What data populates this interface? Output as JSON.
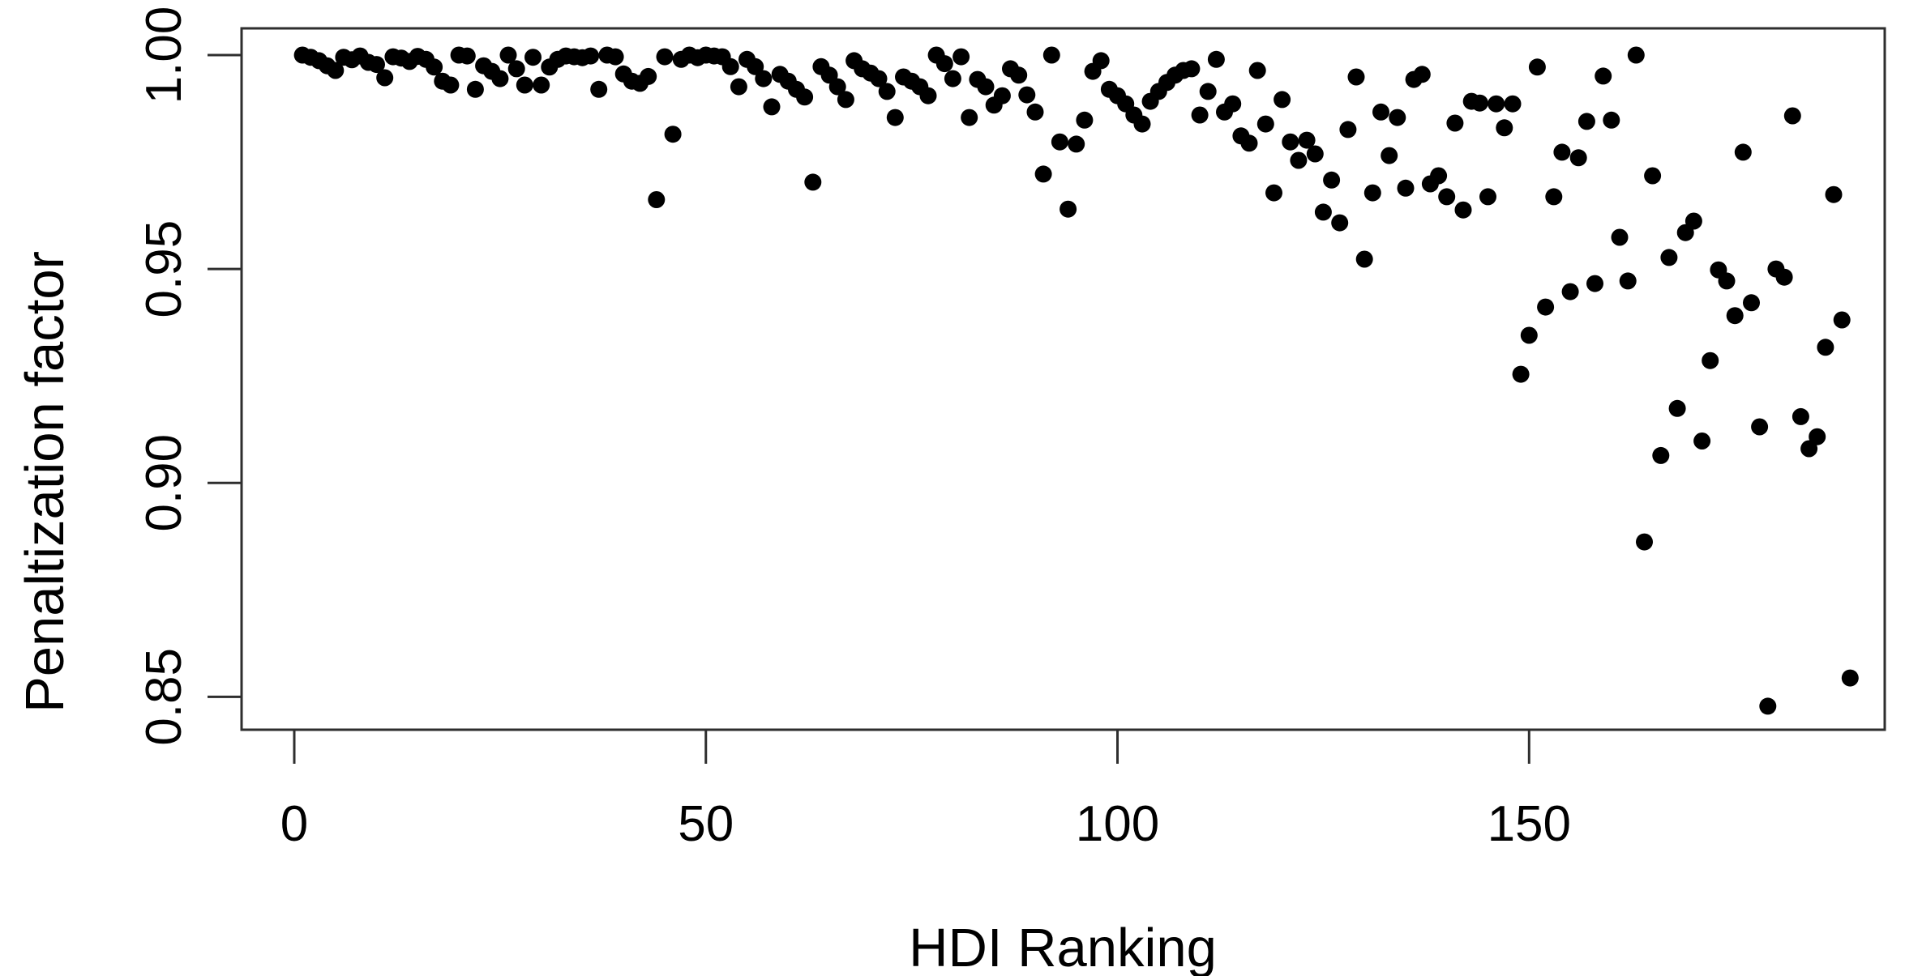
{
  "page": {
    "background": "#ffffff"
  },
  "chart_data": {
    "type": "scatter",
    "title": "",
    "xlabel": "HDI Ranking",
    "ylabel": "Penaltization factor",
    "x_ticks": [
      0,
      50,
      100,
      150
    ],
    "y_ticks": [
      0.85,
      0.9,
      0.95,
      1.0
    ],
    "y_tick_labels": [
      "0.85",
      "0.90",
      "0.95",
      "1.00"
    ],
    "xlim": [
      -6.4,
      193.2
    ],
    "ylim": [
      0.8423,
      1.00625
    ],
    "grid": false,
    "legend": "none",
    "point_color": "#000000",
    "axis_color": "#2e2e2e",
    "points": [
      [
        1,
        1.0
      ],
      [
        2,
        0.9995
      ],
      [
        3,
        0.9987
      ],
      [
        4,
        0.9975
      ],
      [
        5,
        0.9964
      ],
      [
        6,
        0.9995
      ],
      [
        7,
        0.9989
      ],
      [
        8,
        0.9998
      ],
      [
        9,
        0.9983
      ],
      [
        10,
        0.9978
      ],
      [
        11,
        0.9947
      ],
      [
        12,
        0.9996
      ],
      [
        13,
        0.9993
      ],
      [
        14,
        0.9985
      ],
      [
        15,
        0.9997
      ],
      [
        16,
        0.999
      ],
      [
        17,
        0.9972
      ],
      [
        18,
        0.9939
      ],
      [
        19,
        0.993
      ],
      [
        20,
        1.0
      ],
      [
        21,
        0.9998
      ],
      [
        22,
        0.992
      ],
      [
        23,
        0.9975
      ],
      [
        24,
        0.9962
      ],
      [
        25,
        0.9945
      ],
      [
        26,
        1.0
      ],
      [
        27,
        0.9968
      ],
      [
        28,
        0.993
      ],
      [
        29,
        0.9995
      ],
      [
        30,
        0.993
      ],
      [
        31,
        0.9972
      ],
      [
        32,
        0.999
      ],
      [
        33,
        0.9998
      ],
      [
        34,
        0.9996
      ],
      [
        35,
        0.9994
      ],
      [
        36,
        0.9998
      ],
      [
        37,
        0.992
      ],
      [
        38,
        1.0
      ],
      [
        39,
        0.9996
      ],
      [
        40,
        0.9956
      ],
      [
        41,
        0.9939
      ],
      [
        42,
        0.9934
      ],
      [
        43,
        0.995
      ],
      [
        44,
        0.9662
      ],
      [
        45,
        0.9996
      ],
      [
        46,
        0.9815
      ],
      [
        47,
        0.999
      ],
      [
        48,
        1.0
      ],
      [
        49,
        0.9994
      ],
      [
        50,
        1.0
      ],
      [
        51,
        0.9998
      ],
      [
        52,
        0.9996
      ],
      [
        53,
        0.9973
      ],
      [
        54,
        0.9926
      ],
      [
        55,
        0.999
      ],
      [
        56,
        0.9973
      ],
      [
        57,
        0.9945
      ],
      [
        58,
        0.9879
      ],
      [
        59,
        0.9955
      ],
      [
        60,
        0.9939
      ],
      [
        61,
        0.992
      ],
      [
        62,
        0.9902
      ],
      [
        63,
        0.9703
      ],
      [
        64,
        0.9973
      ],
      [
        65,
        0.9953
      ],
      [
        66,
        0.9926
      ],
      [
        67,
        0.9896
      ],
      [
        68,
        0.9987
      ],
      [
        69,
        0.9968
      ],
      [
        70,
        0.9958
      ],
      [
        71,
        0.9945
      ],
      [
        72,
        0.9915
      ],
      [
        73,
        0.9854
      ],
      [
        74,
        0.9949
      ],
      [
        75,
        0.9939
      ],
      [
        76,
        0.9926
      ],
      [
        77,
        0.9905
      ],
      [
        78,
        1.0
      ],
      [
        79,
        0.998
      ],
      [
        80,
        0.9945
      ],
      [
        81,
        0.9996
      ],
      [
        82,
        0.9854
      ],
      [
        83,
        0.9943
      ],
      [
        84,
        0.9926
      ],
      [
        85,
        0.9883
      ],
      [
        86,
        0.9905
      ],
      [
        87,
        0.9968
      ],
      [
        88,
        0.9953
      ],
      [
        89,
        0.9907
      ],
      [
        90,
        0.9867
      ],
      [
        91,
        0.9722
      ],
      [
        92,
        1.0
      ],
      [
        93,
        0.9797
      ],
      [
        94,
        0.964
      ],
      [
        95,
        0.9792
      ],
      [
        96,
        0.9848
      ],
      [
        97,
        0.9962
      ],
      [
        98,
        0.9987
      ],
      [
        99,
        0.992
      ],
      [
        100,
        0.9905
      ],
      [
        101,
        0.9886
      ],
      [
        102,
        0.986
      ],
      [
        103,
        0.9839
      ],
      [
        104,
        0.9892
      ],
      [
        105,
        0.9915
      ],
      [
        106,
        0.9936
      ],
      [
        107,
        0.9953
      ],
      [
        108,
        0.9964
      ],
      [
        109,
        0.9968
      ],
      [
        110,
        0.986
      ],
      [
        111,
        0.9915
      ],
      [
        112,
        0.999
      ],
      [
        113,
        0.9867
      ],
      [
        114,
        0.9886
      ],
      [
        115,
        0.9811
      ],
      [
        116,
        0.9794
      ],
      [
        117,
        0.9964
      ],
      [
        118,
        0.9839
      ],
      [
        119,
        0.9678
      ],
      [
        120,
        0.9896
      ],
      [
        121,
        0.9797
      ],
      [
        122,
        0.9754
      ],
      [
        123,
        0.9801
      ],
      [
        124,
        0.9769
      ],
      [
        125,
        0.9633
      ],
      [
        126,
        0.9708
      ],
      [
        127,
        0.9608
      ],
      [
        128,
        0.9826
      ],
      [
        129,
        0.9949
      ],
      [
        130,
        0.9523
      ],
      [
        131,
        0.9678
      ],
      [
        132,
        0.9867
      ],
      [
        133,
        0.9765
      ],
      [
        134,
        0.9854
      ],
      [
        135,
        0.9689
      ],
      [
        136,
        0.9943
      ],
      [
        137,
        0.9955
      ],
      [
        138,
        0.9699
      ],
      [
        139,
        0.9718
      ],
      [
        140,
        0.9669
      ],
      [
        141,
        0.9841
      ],
      [
        142,
        0.9638
      ],
      [
        143,
        0.9892
      ],
      [
        144,
        0.9888
      ],
      [
        145,
        0.9669
      ],
      [
        146,
        0.9886
      ],
      [
        147,
        0.983
      ],
      [
        148,
        0.9886
      ],
      [
        149,
        0.9254
      ],
      [
        150,
        0.9345
      ],
      [
        151,
        0.9972
      ],
      [
        152,
        0.9411
      ],
      [
        153,
        0.9669
      ],
      [
        154,
        0.9773
      ],
      [
        155,
        0.9447
      ],
      [
        156,
        0.976
      ],
      [
        157,
        0.9845
      ],
      [
        158,
        0.9466
      ],
      [
        159,
        0.9951
      ],
      [
        160,
        0.9848
      ],
      [
        161,
        0.9574
      ],
      [
        162,
        0.9472
      ],
      [
        163,
        1.0
      ],
      [
        164,
        0.8862
      ],
      [
        165,
        0.9718
      ],
      [
        166,
        0.9064
      ],
      [
        167,
        0.9527
      ],
      [
        168,
        0.9174
      ],
      [
        169,
        0.9585
      ],
      [
        170,
        0.9612
      ],
      [
        171,
        0.9098
      ],
      [
        172,
        0.9286
      ],
      [
        173,
        0.9498
      ],
      [
        174,
        0.9472
      ],
      [
        175,
        0.9391
      ],
      [
        176,
        0.9773
      ],
      [
        177,
        0.9421
      ],
      [
        178,
        0.9131
      ],
      [
        179,
        0.8478
      ],
      [
        180,
        0.95
      ],
      [
        181,
        0.9481
      ],
      [
        182,
        0.9858
      ],
      [
        183,
        0.9155
      ],
      [
        184,
        0.908
      ],
      [
        185,
        0.9108
      ],
      [
        186,
        0.9317
      ],
      [
        187,
        0.9674
      ],
      [
        188,
        0.9381
      ],
      [
        189,
        0.8544
      ]
    ]
  }
}
